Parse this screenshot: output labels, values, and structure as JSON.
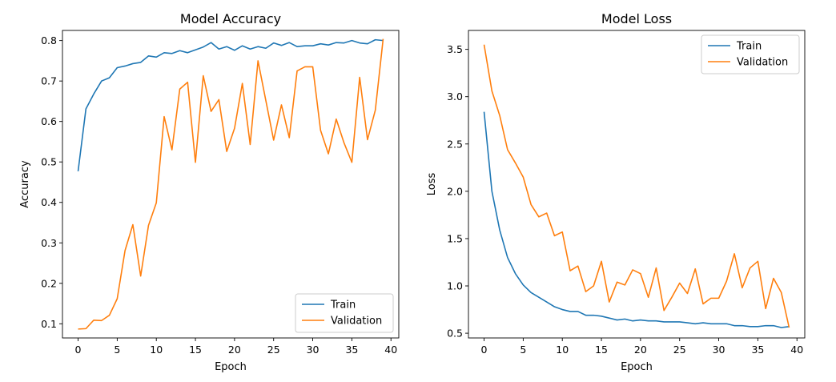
{
  "chart_data": [
    {
      "type": "line",
      "title": "Model Accuracy",
      "xlabel": "Epoch",
      "ylabel": "Accuracy",
      "xlim": [
        -2,
        41
      ],
      "ylim": [
        0.065,
        0.825
      ],
      "xticks": [
        0,
        5,
        10,
        15,
        20,
        25,
        30,
        35,
        40
      ],
      "yticks": [
        0.1,
        0.2,
        0.3,
        0.4,
        0.5,
        0.6,
        0.7,
        0.8
      ],
      "xtick_labels": [
        "0",
        "5",
        "10",
        "15",
        "20",
        "25",
        "30",
        "35",
        "40"
      ],
      "ytick_labels": [
        "0.1",
        "0.2",
        "0.3",
        "0.4",
        "0.5",
        "0.6",
        "0.7",
        "0.8"
      ],
      "grid": false,
      "legend_position": "lower right",
      "x": [
        0,
        1,
        2,
        3,
        4,
        5,
        6,
        7,
        8,
        9,
        10,
        11,
        12,
        13,
        14,
        15,
        16,
        17,
        18,
        19,
        20,
        21,
        22,
        23,
        24,
        25,
        26,
        27,
        28,
        29,
        30,
        31,
        32,
        33,
        34,
        35,
        36,
        37,
        38,
        39
      ],
      "series": [
        {
          "name": "Train",
          "color": "#1f77b4",
          "values": [
            0.477,
            0.631,
            0.668,
            0.7,
            0.708,
            0.733,
            0.737,
            0.743,
            0.746,
            0.762,
            0.759,
            0.77,
            0.768,
            0.775,
            0.77,
            0.777,
            0.784,
            0.795,
            0.779,
            0.785,
            0.776,
            0.787,
            0.779,
            0.785,
            0.781,
            0.794,
            0.788,
            0.795,
            0.785,
            0.787,
            0.787,
            0.792,
            0.789,
            0.795,
            0.794,
            0.8,
            0.794,
            0.792,
            0.802,
            0.8
          ]
        },
        {
          "name": "Validation",
          "color": "#ff7f0e",
          "values": [
            0.087,
            0.088,
            0.109,
            0.108,
            0.121,
            0.162,
            0.281,
            0.345,
            0.218,
            0.343,
            0.399,
            0.612,
            0.53,
            0.68,
            0.697,
            0.499,
            0.713,
            0.625,
            0.654,
            0.526,
            0.583,
            0.694,
            0.543,
            0.75,
            0.652,
            0.554,
            0.641,
            0.56,
            0.725,
            0.735,
            0.735,
            0.578,
            0.52,
            0.606,
            0.547,
            0.499,
            0.709,
            0.555,
            0.628,
            0.804
          ]
        }
      ]
    },
    {
      "type": "line",
      "title": "Model Loss",
      "xlabel": "Epoch",
      "ylabel": "Loss",
      "xlim": [
        -2,
        41
      ],
      "ylim": [
        0.45,
        3.7
      ],
      "xticks": [
        0,
        5,
        10,
        15,
        20,
        25,
        30,
        35,
        40
      ],
      "yticks": [
        0.5,
        1.0,
        1.5,
        2.0,
        2.5,
        3.0,
        3.5
      ],
      "xtick_labels": [
        "0",
        "5",
        "10",
        "15",
        "20",
        "25",
        "30",
        "35",
        "40"
      ],
      "ytick_labels": [
        "0.5",
        "1.0",
        "1.5",
        "2.0",
        "2.5",
        "3.0",
        "3.5"
      ],
      "grid": false,
      "legend_position": "upper right",
      "x": [
        0,
        1,
        2,
        3,
        4,
        5,
        6,
        7,
        8,
        9,
        10,
        11,
        12,
        13,
        14,
        15,
        16,
        17,
        18,
        19,
        20,
        21,
        22,
        23,
        24,
        25,
        26,
        27,
        28,
        29,
        30,
        31,
        32,
        33,
        34,
        35,
        36,
        37,
        38,
        39
      ],
      "series": [
        {
          "name": "Train",
          "color": "#1f77b4",
          "values": [
            2.84,
            2.0,
            1.59,
            1.3,
            1.13,
            1.01,
            0.93,
            0.88,
            0.83,
            0.78,
            0.75,
            0.73,
            0.73,
            0.69,
            0.69,
            0.68,
            0.66,
            0.64,
            0.65,
            0.63,
            0.64,
            0.63,
            0.63,
            0.62,
            0.62,
            0.62,
            0.61,
            0.6,
            0.61,
            0.6,
            0.6,
            0.6,
            0.58,
            0.58,
            0.57,
            0.57,
            0.58,
            0.58,
            0.56,
            0.57
          ]
        },
        {
          "name": "Validation",
          "color": "#ff7f0e",
          "values": [
            3.55,
            3.06,
            2.8,
            2.44,
            2.3,
            2.15,
            1.86,
            1.73,
            1.77,
            1.53,
            1.57,
            1.16,
            1.21,
            0.94,
            1.0,
            1.26,
            0.83,
            1.04,
            1.01,
            1.17,
            1.13,
            0.88,
            1.19,
            0.74,
            0.88,
            1.03,
            0.92,
            1.18,
            0.81,
            0.87,
            0.87,
            1.05,
            1.34,
            0.98,
            1.19,
            1.26,
            0.76,
            1.08,
            0.93,
            0.56
          ]
        }
      ]
    }
  ]
}
